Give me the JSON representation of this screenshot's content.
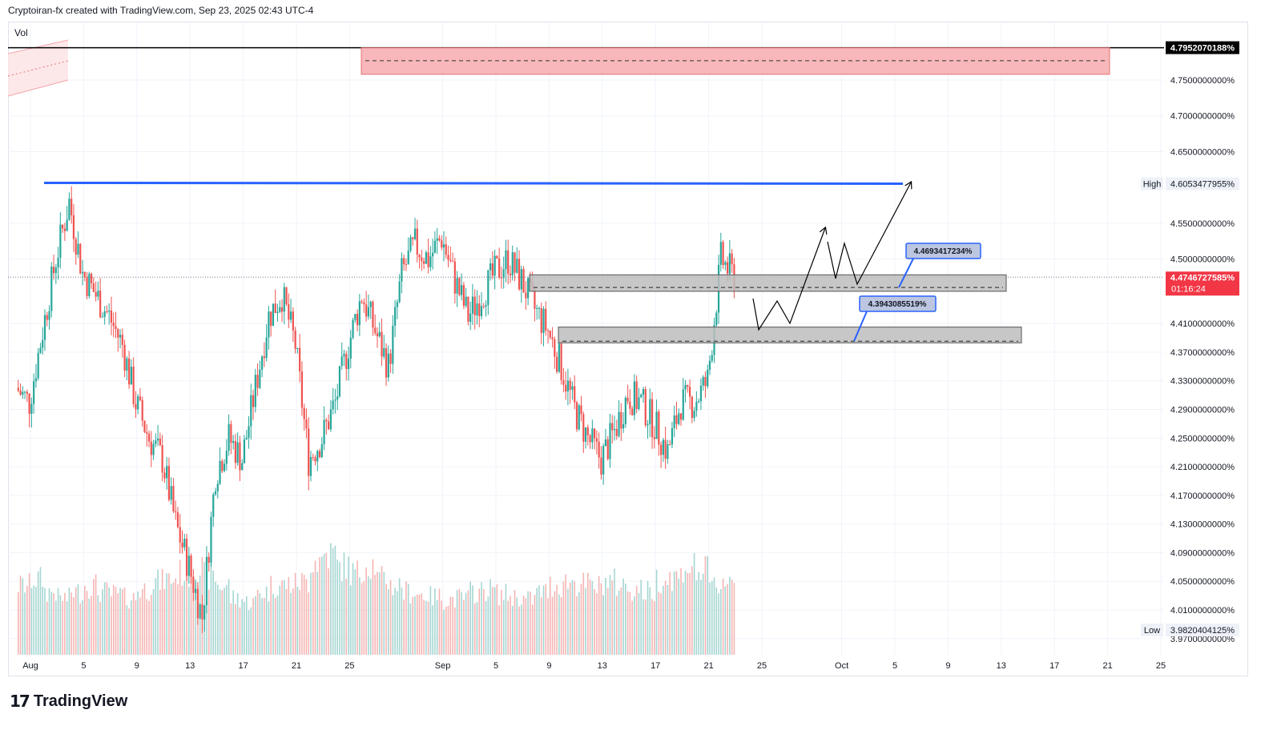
{
  "header": {
    "credit": "Cryptoiran-fx created with TradingView.com, Sep 23, 2025 02:43 UTC-4"
  },
  "indicator": {
    "vol_label": "Vol"
  },
  "footer": {
    "logo_mark": "17",
    "brand": "TradingView"
  },
  "colors": {
    "up": "#26a69a",
    "down": "#ef5350",
    "blue_line": "#2962ff",
    "supply_zone": "#f7b7bb",
    "demand_zone": "#bdbdbd",
    "price_tag": "#f23645"
  },
  "chart_data": {
    "type": "candlestick",
    "x_axis": {
      "ticks": [
        "Aug",
        "5",
        "9",
        "13",
        "17",
        "21",
        "25",
        "Sep",
        "5",
        "9",
        "13",
        "17",
        "21",
        "25",
        "Oct",
        "5",
        "9",
        "13",
        "17",
        "21",
        "25"
      ],
      "tick_dates": [
        "2025-08-01",
        "2025-08-05",
        "2025-08-09",
        "2025-08-13",
        "2025-08-17",
        "2025-08-21",
        "2025-08-25",
        "2025-09-01",
        "2025-09-05",
        "2025-09-09",
        "2025-09-13",
        "2025-09-17",
        "2025-09-21",
        "2025-09-25",
        "2025-10-01",
        "2025-10-05",
        "2025-10-09",
        "2025-10-13",
        "2025-10-17",
        "2025-10-21",
        "2025-10-25"
      ]
    },
    "y_axis": {
      "ticks": [
        "4.7500000000%",
        "4.7000000000%",
        "4.6500000000%",
        "4.5500000000%",
        "4.5000000000%",
        "4.4100000000%",
        "4.3700000000%",
        "4.3300000000%",
        "4.2900000000%",
        "4.2500000000%",
        "4.2100000000%",
        "4.1700000000%",
        "4.1300000000%",
        "4.0900000000%",
        "4.0500000000%",
        "4.0100000000%",
        "3.9700000000%"
      ],
      "tick_values": [
        4.75,
        4.7,
        4.65,
        4.55,
        4.5,
        4.41,
        4.37,
        4.33,
        4.29,
        4.25,
        4.21,
        4.17,
        4.13,
        4.09,
        4.05,
        4.01,
        3.97
      ]
    },
    "price_labels": {
      "top_line": "4.7952070188%",
      "high_label": "High",
      "high_value": "4.6053477955%",
      "current_value": "4.4746727585%",
      "countdown": "01:16:24",
      "low_label": "Low",
      "low_value": "3.9820404125%"
    },
    "annotations": {
      "upper_box_label": "4.4693417234%",
      "lower_box_label": "4.3943085519%"
    },
    "levels": {
      "top_line": 4.7952,
      "high": 4.6053,
      "current": 4.4747,
      "supply_zone": [
        4.758,
        4.795
      ],
      "supply_mid": 4.777,
      "demand_upper": [
        4.455,
        4.478
      ],
      "demand_upper_mid": 4.4693,
      "demand_lower": [
        4.383,
        4.405
      ],
      "demand_lower_mid": 4.3943
    },
    "close_path": [
      [
        "2025-07-31",
        4.32
      ],
      [
        "2025-08-01",
        4.3
      ],
      [
        "2025-08-02",
        4.4
      ],
      [
        "2025-08-03",
        4.5
      ],
      [
        "2025-08-04",
        4.58
      ],
      [
        "2025-08-05",
        4.48
      ],
      [
        "2025-08-06",
        4.45
      ],
      [
        "2025-08-07",
        4.42
      ],
      [
        "2025-08-08",
        4.38
      ],
      [
        "2025-08-09",
        4.3
      ],
      [
        "2025-08-10",
        4.25
      ],
      [
        "2025-08-11",
        4.22
      ],
      [
        "2025-08-12",
        4.13
      ],
      [
        "2025-08-13",
        4.07
      ],
      [
        "2025-08-14",
        4.0
      ],
      [
        "2025-08-15",
        4.2
      ],
      [
        "2025-08-16",
        4.25
      ],
      [
        "2025-08-17",
        4.22
      ],
      [
        "2025-08-18",
        4.32
      ],
      [
        "2025-08-19",
        4.42
      ],
      [
        "2025-08-20",
        4.45
      ],
      [
        "2025-08-21",
        4.38
      ],
      [
        "2025-08-22",
        4.22
      ],
      [
        "2025-08-23",
        4.25
      ],
      [
        "2025-08-24",
        4.3
      ],
      [
        "2025-08-25",
        4.38
      ],
      [
        "2025-08-26",
        4.45
      ],
      [
        "2025-08-27",
        4.4
      ],
      [
        "2025-08-28",
        4.35
      ],
      [
        "2025-08-29",
        4.48
      ],
      [
        "2025-08-30",
        4.52
      ],
      [
        "2025-08-31",
        4.5
      ],
      [
        "2025-09-01",
        4.53
      ],
      [
        "2025-09-02",
        4.47
      ],
      [
        "2025-09-03",
        4.42
      ],
      [
        "2025-09-04",
        4.45
      ],
      [
        "2025-09-05",
        4.48
      ],
      [
        "2025-09-06",
        4.5
      ],
      [
        "2025-09-07",
        4.47
      ],
      [
        "2025-09-08",
        4.43
      ],
      [
        "2025-09-09",
        4.4
      ],
      [
        "2025-09-10",
        4.35
      ],
      [
        "2025-09-11",
        4.29
      ],
      [
        "2025-09-12",
        4.25
      ],
      [
        "2025-09-13",
        4.22
      ],
      [
        "2025-09-14",
        4.26
      ],
      [
        "2025-09-15",
        4.31
      ],
      [
        "2025-09-16",
        4.3
      ],
      [
        "2025-09-17",
        4.27
      ],
      [
        "2025-09-18",
        4.23
      ],
      [
        "2025-09-19",
        4.3
      ],
      [
        "2025-09-20",
        4.3
      ],
      [
        "2025-09-21",
        4.33
      ],
      [
        "2025-09-22",
        4.5
      ],
      [
        "2025-09-23",
        4.475
      ]
    ],
    "volume_relative": [
      0.55,
      0.6,
      0.5,
      0.45,
      0.5,
      0.55,
      0.5,
      0.48,
      0.45,
      0.52,
      0.58,
      0.6,
      0.65,
      0.68,
      0.62,
      0.55,
      0.45,
      0.42,
      0.5,
      0.55,
      0.56,
      0.58,
      0.75,
      0.8,
      0.7,
      0.65,
      0.72,
      0.6,
      0.55,
      0.5,
      0.48,
      0.46,
      0.44,
      0.45,
      0.5,
      0.52,
      0.48,
      0.46,
      0.44,
      0.5,
      0.55,
      0.58,
      0.56,
      0.54,
      0.58,
      0.55,
      0.52,
      0.5,
      0.6,
      0.62,
      0.7,
      0.66,
      0.55,
      0.6,
      0.8
    ]
  }
}
